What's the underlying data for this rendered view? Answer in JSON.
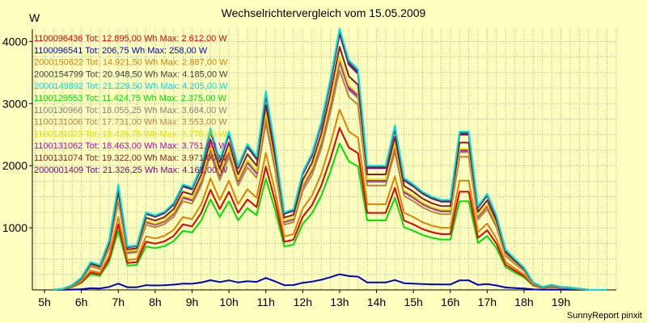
{
  "title": "Wechselrichtervergleich vom 15.05.2009",
  "ylabel": "W",
  "footer": "SunnyReport pinxit",
  "chart_data": {
    "type": "line",
    "title": "Wechselrichtervergleich vom 15.05.2009",
    "xlabel": "",
    "ylabel": "W",
    "ylim": [
      0,
      4200
    ],
    "xlim": [
      4.67,
      20.5
    ],
    "grid": true,
    "legend_position": "top-left",
    "x_ticks": [
      {
        "value": 5,
        "label": "5h"
      },
      {
        "value": 6,
        "label": "6h"
      },
      {
        "value": 7,
        "label": "7h"
      },
      {
        "value": 8,
        "label": "8h"
      },
      {
        "value": 9,
        "label": "9h"
      },
      {
        "value": 10,
        "label": "10h"
      },
      {
        "value": 11,
        "label": "11h"
      },
      {
        "value": 12,
        "label": "12h"
      },
      {
        "value": 13,
        "label": "13h"
      },
      {
        "value": 14,
        "label": "14h"
      },
      {
        "value": 15,
        "label": "15h"
      },
      {
        "value": 16,
        "label": "16h"
      },
      {
        "value": 17,
        "label": "17h"
      },
      {
        "value": 18,
        "label": "18h"
      },
      {
        "value": 19,
        "label": "19h"
      }
    ],
    "y_ticks": [
      1000,
      2000,
      3000,
      4000
    ],
    "x": [
      5.25,
      5.5,
      5.75,
      6.0,
      6.25,
      6.5,
      6.75,
      7.0,
      7.25,
      7.5,
      7.75,
      8.0,
      8.25,
      8.5,
      8.75,
      9.0,
      9.25,
      9.5,
      9.75,
      10.0,
      10.25,
      10.5,
      10.75,
      11.0,
      11.25,
      11.5,
      11.75,
      12.0,
      12.25,
      12.5,
      12.75,
      13.0,
      13.25,
      13.5,
      13.75,
      14.0,
      14.25,
      14.5,
      14.75,
      15.0,
      15.25,
      15.5,
      15.75,
      16.0,
      16.25,
      16.5,
      16.75,
      17.0,
      17.25,
      17.5,
      17.75,
      18.0,
      18.25,
      18.5,
      18.75,
      19.0,
      19.25,
      19.5,
      19.75,
      20.0,
      20.25
    ],
    "reference_max": [
      0,
      20,
      80,
      200,
      450,
      400,
      800,
      1700,
      700,
      720,
      1250,
      1200,
      1260,
      1400,
      1700,
      1650,
      2000,
      2600,
      2100,
      2550,
      2000,
      2350,
      2150,
      3200,
      2300,
      1250,
      1300,
      1900,
      2200,
      2700,
      3400,
      4210,
      3700,
      3550,
      2000,
      2000,
      2000,
      2650,
      1800,
      1700,
      1580,
      1500,
      1450,
      1450,
      2550,
      2550,
      1350,
      1550,
      1200,
      650,
      500,
      360,
      120,
      50,
      80,
      50,
      40,
      20,
      0,
      0,
      0
    ],
    "series": [
      {
        "name": "1100096436",
        "legend": "1100096436 Tot: 12.895,00 Wh Max: 2.612,00 W",
        "color": "#e00000",
        "ratio": 0.62
      },
      {
        "name": "1100096541",
        "legend": "1100096541 Tot: 206,75 Wh Max: 258,00 W",
        "color": "#0000c0",
        "ratio": 0.06
      },
      {
        "name": "2000150622",
        "legend": "2000150622 Tot: 14.921,50 Wh Max: 2.887,00 W",
        "color": "#e08000",
        "ratio": 0.69
      },
      {
        "name": "2000154799",
        "legend": "2000154799 Tot: 20.948,50 Wh Max: 4.185,00 W",
        "color": "#404040",
        "ratio": 0.99
      },
      {
        "name": "2000149892",
        "legend": "2000149892 Tot: 21.229,50 Wh Max: 4.205,00 W",
        "color": "#00e0e0",
        "ratio": 1.0
      },
      {
        "name": "1100129553",
        "legend": "1100129553 Tot: 11.424,75 Wh Max: 2.375,00 W",
        "color": "#00e000",
        "ratio": 0.56
      },
      {
        "name": "1100130966",
        "legend": "1100130966 Tot: 18.055,25 Wh Max: 3.684,00 W",
        "color": "#808080",
        "ratio": 0.87
      },
      {
        "name": "1100131006",
        "legend": "1100131006 Tot: 17.731,00 Wh Max: 3.553,00 W",
        "color": "#c08040",
        "ratio": 0.84
      },
      {
        "name": "1100131023",
        "legend": "1100131023 Tot: 18.425,75 Wh Max: 3.770,00 W",
        "color": "#e0e000",
        "ratio": 0.89
      },
      {
        "name": "1100131062",
        "legend": "1100131062 Tot: 18.463,00 Wh Max: 3.751,00 W",
        "color": "#c000c0",
        "ratio": 0.88
      },
      {
        "name": "1100131074",
        "legend": "1100131074 Tot: 19.322,00 Wh Max: 3.971,00 W",
        "color": "#802020",
        "ratio": 0.93
      },
      {
        "name": "2000001409",
        "legend": "2000001409 Tot: 21.326,25 Wh Max: 4.161,00 W",
        "color": "#800080",
        "ratio": 0.98
      }
    ]
  }
}
